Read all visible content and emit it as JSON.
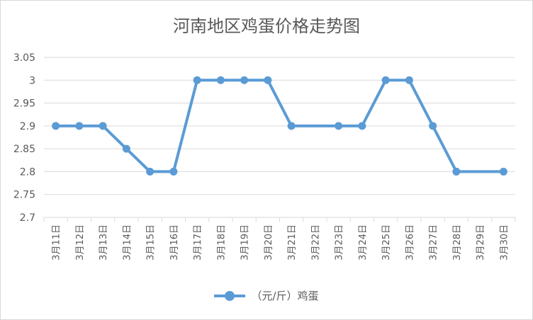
{
  "chart_data": {
    "type": "line",
    "title": "河南地区鸡蛋价格走势图",
    "categories": [
      "3月11日",
      "3月12日",
      "3月13日",
      "3月14日",
      "3月15日",
      "3月16日",
      "3月17日",
      "3月18日",
      "3月19日",
      "3月20日",
      "3月21日",
      "3月22日",
      "3月23日",
      "3月24日",
      "3月25日",
      "3月26日",
      "3月27日",
      "3月28日",
      "3月29日",
      "3月30日"
    ],
    "series": [
      {
        "name": "（元/斤）鸡蛋",
        "color": "#5b9bd5",
        "values": [
          2.9,
          2.9,
          2.9,
          2.85,
          2.8,
          2.8,
          3.0,
          3.0,
          3.0,
          3.0,
          2.9,
          null,
          2.9,
          2.9,
          3.0,
          3.0,
          2.9,
          2.8,
          null,
          2.8
        ]
      }
    ],
    "ylim": [
      2.7,
      3.05
    ],
    "yticks": [
      "2.7",
      "2.75",
      "2.8",
      "2.85",
      "2.9",
      "2.95",
      "3",
      "3.05"
    ],
    "grid": true,
    "legend": "bottom"
  }
}
